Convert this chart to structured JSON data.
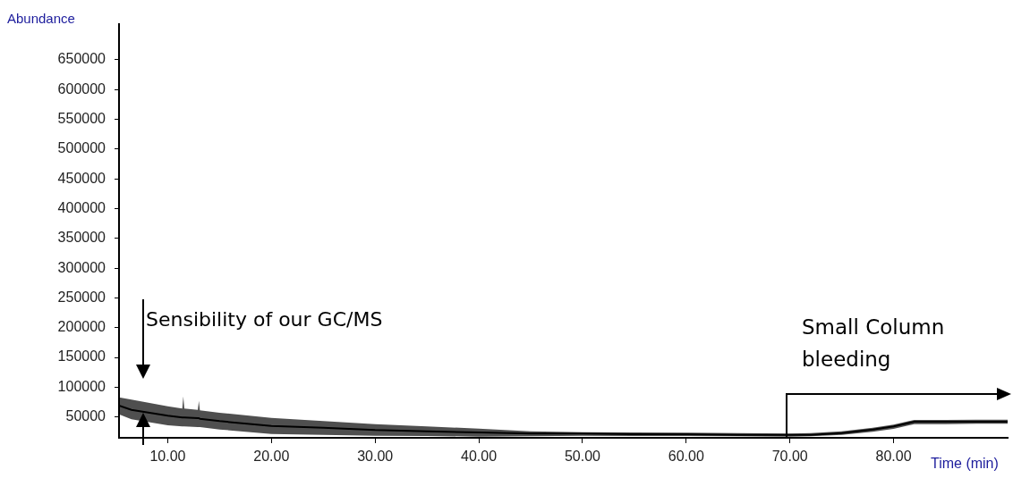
{
  "chart_data": {
    "type": "line",
    "xlabel": "Time (min)",
    "ylabel": "Abundance",
    "x": [
      5.3,
      6.5,
      10,
      11.4,
      11.5,
      11.6,
      12.9,
      13,
      13.1,
      15,
      20,
      25,
      30,
      35,
      40,
      45,
      50,
      55,
      60,
      65,
      70,
      72,
      75,
      78,
      80,
      82,
      85,
      88,
      91
    ],
    "series": [
      {
        "color": "#000000",
        "values": [
          69000,
          62000,
          52000,
          49000,
          49000,
          49000,
          48000,
          48000,
          47000,
          43000,
          35000,
          32000,
          28000,
          26000,
          24000,
          22000,
          22000,
          21000,
          21000,
          20000,
          20000,
          20000,
          23000,
          29000,
          34000,
          42000,
          42000,
          42000,
          42000
        ],
        "upper": [
          83000,
          79000,
          68000,
          64000,
          84500,
          64000,
          62000,
          77000,
          61000,
          57000,
          48500,
          43000,
          38000,
          34000,
          30500,
          26000,
          24500,
          24000,
          23500,
          23000,
          22000,
          23000,
          26000,
          32000,
          37000,
          45000,
          45000,
          45500,
          45500
        ],
        "lower": [
          54500,
          46000,
          36000,
          34000,
          34000,
          34000,
          33000,
          33000,
          33000,
          29000,
          21500,
          20000,
          18500,
          18000,
          17000,
          17500,
          18500,
          18000,
          18000,
          17500,
          17000,
          17500,
          20000,
          25000,
          30000,
          38000,
          38000,
          38500,
          38500
        ]
      }
    ],
    "xlim": [
      5.3,
      91
    ],
    "xticks": [
      {
        "value": 10,
        "label": "10.00"
      },
      {
        "value": 20,
        "label": "20.00"
      },
      {
        "value": 30,
        "label": "30.00"
      },
      {
        "value": 40,
        "label": "40.00"
      },
      {
        "value": 50,
        "label": "50.00"
      },
      {
        "value": 60,
        "label": "60.00"
      },
      {
        "value": 70,
        "label": "70.00"
      },
      {
        "value": 80,
        "label": "80.00"
      }
    ],
    "ylim": [
      15000,
      710000
    ],
    "yticks": [
      50000,
      100000,
      150000,
      200000,
      250000,
      300000,
      350000,
      400000,
      450000,
      500000,
      550000,
      600000,
      650000
    ],
    "grid": false,
    "legend": false,
    "marker": "none",
    "line_style": "solid",
    "annotations": [
      "Sensibility of our GC/MS",
      "Small Column bleeding"
    ]
  }
}
